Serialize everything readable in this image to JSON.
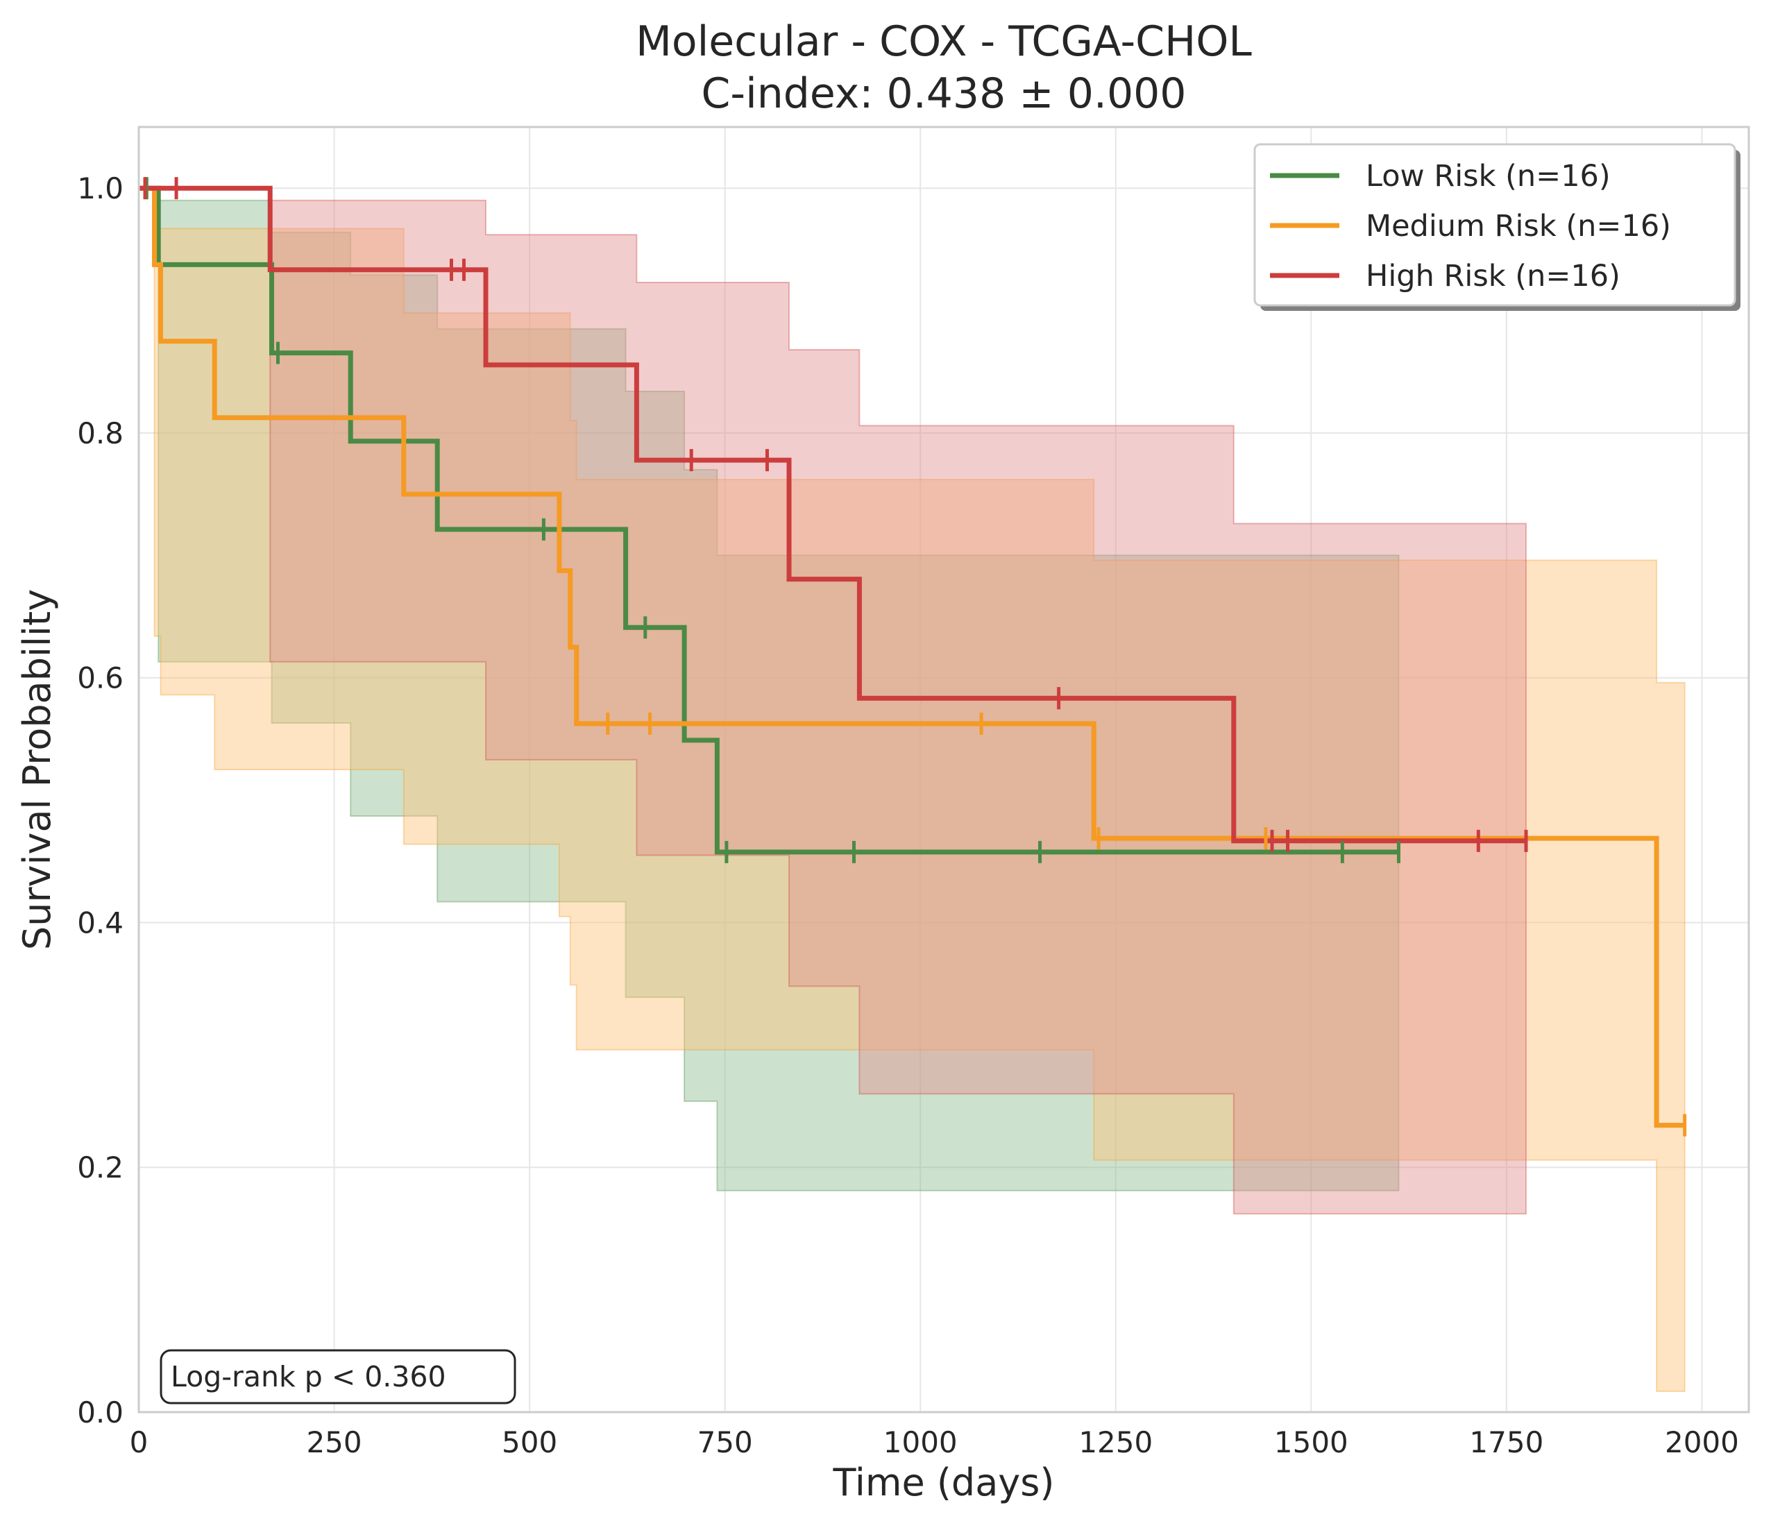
{
  "chart_data": {
    "type": "line",
    "subtype": "kaplan-meier",
    "title": "Molecular - COX - TCGA-CHOL",
    "subtitle": "C-index: 0.438 ± 0.000",
    "xlabel": "Time (days)",
    "ylabel": "Survival Probability",
    "xlim": [
      0,
      2060
    ],
    "ylim": [
      0,
      1.05
    ],
    "xticks": [
      0,
      250,
      500,
      750,
      1000,
      1250,
      1500,
      1750,
      2000
    ],
    "yticks": [
      0.0,
      0.2,
      0.4,
      0.6,
      0.8,
      1.0
    ],
    "xtick_labels": [
      "0",
      "250",
      "500",
      "750",
      "1000",
      "1250",
      "1500",
      "1750",
      "2000"
    ],
    "ytick_labels": [
      "0.0",
      "0.2",
      "0.4",
      "0.6",
      "0.8",
      "1.0"
    ],
    "grid": true,
    "legend_position": "top-right",
    "annotation": "Log-rank p < 0.360",
    "series": [
      {
        "name": "Low Risk (n=16)",
        "color": "#4a8a45",
        "fill_color": "#8fbf92",
        "steps": [
          [
            0,
            1.0
          ],
          [
            25,
            0.9375
          ],
          [
            170,
            0.8654
          ],
          [
            271,
            0.7933
          ],
          [
            382,
            0.7212
          ],
          [
            623,
            0.6411
          ],
          [
            698,
            0.549
          ],
          [
            740,
            0.4576
          ],
          [
            1612,
            0.4576
          ]
        ],
        "ci_upper": [
          [
            0,
            1.0
          ],
          [
            25,
            0.99
          ],
          [
            170,
            0.964
          ],
          [
            271,
            0.929
          ],
          [
            382,
            0.885
          ],
          [
            623,
            0.834
          ],
          [
            698,
            0.77
          ],
          [
            740,
            0.7
          ],
          [
            1612,
            0.7
          ]
        ],
        "ci_lower": [
          [
            0,
            1.0
          ],
          [
            25,
            0.613
          ],
          [
            170,
            0.563
          ],
          [
            271,
            0.487
          ],
          [
            382,
            0.417
          ],
          [
            623,
            0.339
          ],
          [
            698,
            0.254
          ],
          [
            740,
            0.181
          ],
          [
            1612,
            0.181
          ]
        ],
        "censors": [
          [
            10,
            1.0
          ],
          [
            178,
            0.8654
          ],
          [
            518,
            0.7212
          ],
          [
            648,
            0.6411
          ],
          [
            752,
            0.4576
          ],
          [
            915,
            0.4576
          ],
          [
            1153,
            0.4576
          ],
          [
            1540,
            0.4576
          ],
          [
            1612,
            0.4576
          ]
        ]
      },
      {
        "name": "Medium Risk (n=16)",
        "color": "#f59a23",
        "fill_color": "#fcc47a",
        "steps": [
          [
            0,
            1.0
          ],
          [
            20,
            0.9375
          ],
          [
            28,
            0.875
          ],
          [
            97,
            0.8125
          ],
          [
            339,
            0.75
          ],
          [
            538,
            0.6875
          ],
          [
            552,
            0.625
          ],
          [
            560,
            0.5625
          ],
          [
            1222,
            0.4688
          ],
          [
            1942,
            0.2344
          ],
          [
            1978,
            0.2344
          ]
        ],
        "ci_upper": [
          [
            0,
            1.0
          ],
          [
            20,
            0.967
          ],
          [
            28,
            0.967
          ],
          [
            97,
            0.967
          ],
          [
            339,
            0.898
          ],
          [
            538,
            0.898
          ],
          [
            552,
            0.81
          ],
          [
            560,
            0.762
          ],
          [
            1222,
            0.696
          ],
          [
            1942,
            0.596
          ],
          [
            1978,
            0.596
          ]
        ],
        "ci_lower": [
          [
            0,
            1.0
          ],
          [
            20,
            0.634
          ],
          [
            28,
            0.586
          ],
          [
            97,
            0.525
          ],
          [
            339,
            0.464
          ],
          [
            538,
            0.405
          ],
          [
            552,
            0.349
          ],
          [
            560,
            0.296
          ],
          [
            1222,
            0.206
          ],
          [
            1942,
            0.017
          ],
          [
            1978,
            0.017
          ]
        ],
        "censors": [
          [
            600,
            0.5625
          ],
          [
            654,
            0.5625
          ],
          [
            1078,
            0.5625
          ],
          [
            1228,
            0.4688
          ],
          [
            1442,
            0.4688
          ],
          [
            1978,
            0.2344
          ]
        ]
      },
      {
        "name": "High Risk (n=16)",
        "color": "#cc3d3d",
        "fill_color": "#e39090",
        "steps": [
          [
            0,
            1.0
          ],
          [
            168,
            0.9333
          ],
          [
            444,
            0.8556
          ],
          [
            637,
            0.7778
          ],
          [
            832,
            0.6806
          ],
          [
            922,
            0.5833
          ],
          [
            1401,
            0.4667
          ],
          [
            1775,
            0.4667
          ]
        ],
        "ci_upper": [
          [
            0,
            1.0
          ],
          [
            168,
            0.99
          ],
          [
            444,
            0.962
          ],
          [
            637,
            0.923
          ],
          [
            832,
            0.868
          ],
          [
            922,
            0.806
          ],
          [
            1401,
            0.726
          ],
          [
            1775,
            0.726
          ]
        ],
        "ci_lower": [
          [
            0,
            1.0
          ],
          [
            168,
            0.613
          ],
          [
            444,
            0.533
          ],
          [
            637,
            0.455
          ],
          [
            832,
            0.348
          ],
          [
            922,
            0.26
          ],
          [
            1401,
            0.162
          ],
          [
            1775,
            0.162
          ]
        ],
        "censors": [
          [
            8,
            1.0
          ],
          [
            48,
            1.0
          ],
          [
            400,
            0.9333
          ],
          [
            416,
            0.9333
          ],
          [
            707,
            0.7778
          ],
          [
            804,
            0.7778
          ],
          [
            1177,
            0.5833
          ],
          [
            1450,
            0.4667
          ],
          [
            1470,
            0.4667
          ],
          [
            1714,
            0.4667
          ],
          [
            1775,
            0.4667
          ]
        ]
      }
    ]
  }
}
